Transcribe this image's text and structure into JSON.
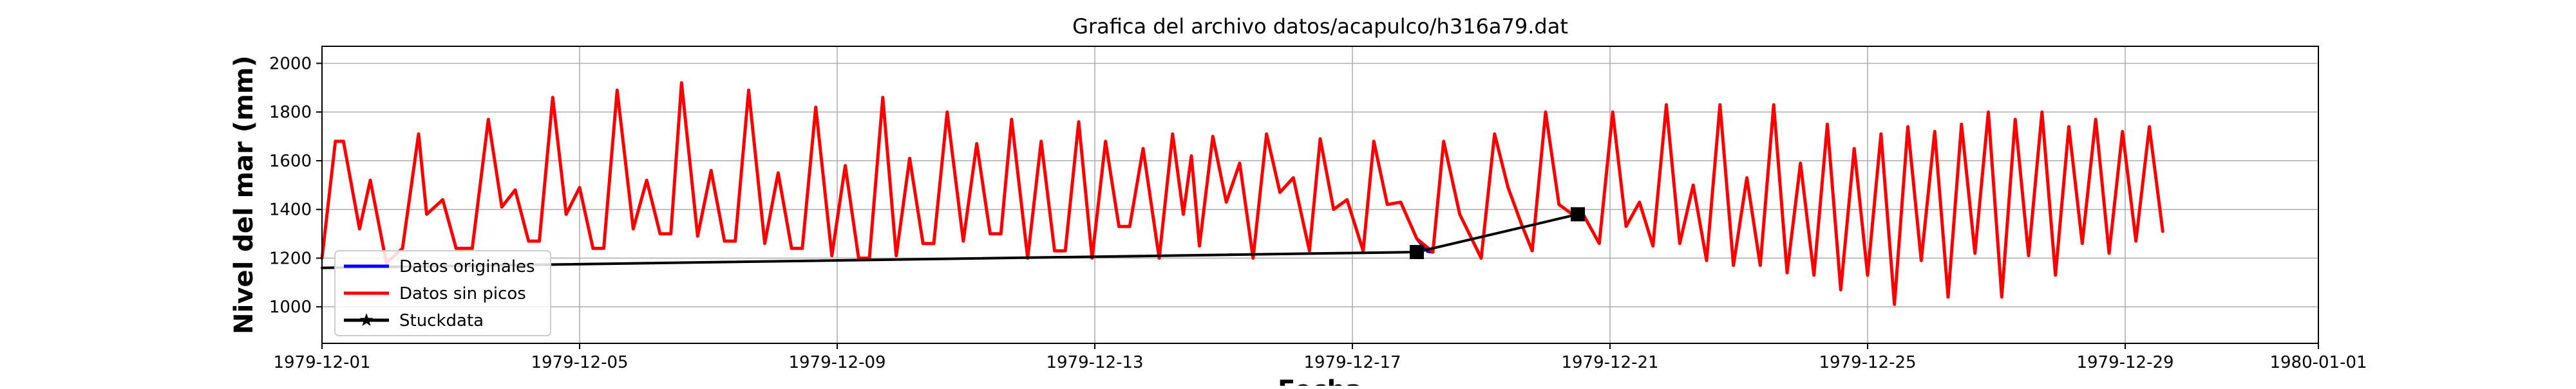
{
  "chart_data": {
    "type": "line",
    "title": "Grafica del archivo datos/acapulco/h316a79.dat",
    "xlabel": "Fecha",
    "ylabel": "Nivel del mar (mm)",
    "x_type": "date",
    "xlim": [
      "1979-12-01",
      "1980-01-01"
    ],
    "ylim": [
      850,
      2070
    ],
    "x_ticks": [
      "1979-12-01",
      "1979-12-05",
      "1979-12-09",
      "1979-12-13",
      "1979-12-17",
      "1979-12-21",
      "1979-12-25",
      "1979-12-29",
      "1980-01-01"
    ],
    "y_ticks": [
      1000,
      1200,
      1400,
      1600,
      1800,
      2000
    ],
    "grid": true,
    "legend_position": "lower-left",
    "series": [
      {
        "name": "Datos originales",
        "color": "#0000ff",
        "marker": "none",
        "points": [
          [
            "1979-12-18 00:00",
            1280
          ],
          [
            "1979-12-18 04:00",
            1228
          ],
          [
            "1979-12-18 06:00",
            1225
          ]
        ]
      },
      {
        "name": "Datos sin picos",
        "color": "#ff0000",
        "marker": "none",
        "points": [
          [
            "1979-12-01 00:00",
            1200
          ],
          [
            "1979-12-01 05:00",
            1680
          ],
          [
            "1979-12-01 08:00",
            1680
          ],
          [
            "1979-12-01 14:00",
            1320
          ],
          [
            "1979-12-01 18:00",
            1520
          ],
          [
            "1979-12-02 00:00",
            1180
          ],
          [
            "1979-12-02 06:00",
            1240
          ],
          [
            "1979-12-02 12:00",
            1710
          ],
          [
            "1979-12-02 15:00",
            1380
          ],
          [
            "1979-12-02 21:00",
            1440
          ],
          [
            "1979-12-03 02:00",
            1240
          ],
          [
            "1979-12-03 08:00",
            1240
          ],
          [
            "1979-12-03 14:00",
            1770
          ],
          [
            "1979-12-03 19:00",
            1410
          ],
          [
            "1979-12-04 00:00",
            1480
          ],
          [
            "1979-12-04 05:00",
            1270
          ],
          [
            "1979-12-04 09:00",
            1270
          ],
          [
            "1979-12-04 14:00",
            1860
          ],
          [
            "1979-12-04 19:00",
            1380
          ],
          [
            "1979-12-05 00:00",
            1490
          ],
          [
            "1979-12-05 05:00",
            1240
          ],
          [
            "1979-12-05 09:00",
            1240
          ],
          [
            "1979-12-05 14:00",
            1890
          ],
          [
            "1979-12-05 20:00",
            1320
          ],
          [
            "1979-12-06 01:00",
            1520
          ],
          [
            "1979-12-06 06:00",
            1300
          ],
          [
            "1979-12-06 10:00",
            1300
          ],
          [
            "1979-12-06 14:00",
            1920
          ],
          [
            "1979-12-06 20:00",
            1290
          ],
          [
            "1979-12-07 01:00",
            1560
          ],
          [
            "1979-12-07 06:00",
            1270
          ],
          [
            "1979-12-07 10:00",
            1270
          ],
          [
            "1979-12-07 15:00",
            1890
          ],
          [
            "1979-12-07 21:00",
            1260
          ],
          [
            "1979-12-08 02:00",
            1550
          ],
          [
            "1979-12-08 07:00",
            1240
          ],
          [
            "1979-12-08 11:00",
            1240
          ],
          [
            "1979-12-08 16:00",
            1820
          ],
          [
            "1979-12-08 22:00",
            1210
          ],
          [
            "1979-12-09 03:00",
            1580
          ],
          [
            "1979-12-09 08:00",
            1200
          ],
          [
            "1979-12-09 12:00",
            1200
          ],
          [
            "1979-12-09 17:00",
            1860
          ],
          [
            "1979-12-09 22:00",
            1210
          ],
          [
            "1979-12-10 03:00",
            1610
          ],
          [
            "1979-12-10 08:00",
            1260
          ],
          [
            "1979-12-10 12:00",
            1260
          ],
          [
            "1979-12-10 17:00",
            1800
          ],
          [
            "1979-12-10 23:00",
            1270
          ],
          [
            "1979-12-11 04:00",
            1670
          ],
          [
            "1979-12-11 09:00",
            1300
          ],
          [
            "1979-12-11 13:00",
            1300
          ],
          [
            "1979-12-11 17:00",
            1770
          ],
          [
            "1979-12-11 23:00",
            1200
          ],
          [
            "1979-12-12 04:00",
            1680
          ],
          [
            "1979-12-12 09:00",
            1230
          ],
          [
            "1979-12-12 13:00",
            1230
          ],
          [
            "1979-12-12 18:00",
            1760
          ],
          [
            "1979-12-12 23:00",
            1200
          ],
          [
            "1979-12-13 04:00",
            1680
          ],
          [
            "1979-12-13 09:00",
            1330
          ],
          [
            "1979-12-13 13:00",
            1330
          ],
          [
            "1979-12-13 18:00",
            1650
          ],
          [
            "1979-12-14 00:00",
            1200
          ],
          [
            "1979-12-14 05:00",
            1710
          ],
          [
            "1979-12-14 09:00",
            1380
          ],
          [
            "1979-12-14 12:00",
            1620
          ],
          [
            "1979-12-14 15:00",
            1250
          ],
          [
            "1979-12-14 20:00",
            1700
          ],
          [
            "1979-12-15 01:00",
            1430
          ],
          [
            "1979-12-15 06:00",
            1590
          ],
          [
            "1979-12-15 11:00",
            1200
          ],
          [
            "1979-12-15 16:00",
            1710
          ],
          [
            "1979-12-15 21:00",
            1470
          ],
          [
            "1979-12-16 02:00",
            1530
          ],
          [
            "1979-12-16 08:00",
            1230
          ],
          [
            "1979-12-16 12:00",
            1690
          ],
          [
            "1979-12-16 17:00",
            1400
          ],
          [
            "1979-12-16 22:00",
            1440
          ],
          [
            "1979-12-17 04:00",
            1230
          ],
          [
            "1979-12-17 08:00",
            1680
          ],
          [
            "1979-12-17 13:00",
            1420
          ],
          [
            "1979-12-17 18:00",
            1430
          ],
          [
            "1979-12-18 00:00",
            1280
          ],
          [
            "1979-12-18 06:00",
            1225
          ],
          [
            "1979-12-18 10:00",
            1680
          ],
          [
            "1979-12-18 16:00",
            1380
          ],
          [
            "1979-12-19 00:00",
            1200
          ],
          [
            "1979-12-19 05:00",
            1710
          ],
          [
            "1979-12-19 10:00",
            1490
          ],
          [
            "1979-12-19 15:00",
            1340
          ],
          [
            "1979-12-19 19:00",
            1230
          ],
          [
            "1979-12-20 00:00",
            1800
          ],
          [
            "1979-12-20 05:00",
            1420
          ],
          [
            "1979-12-20 10:00",
            1380
          ],
          [
            "1979-12-20 14:00",
            1380
          ],
          [
            "1979-12-20 20:00",
            1260
          ],
          [
            "1979-12-21 01:00",
            1800
          ],
          [
            "1979-12-21 06:00",
            1330
          ],
          [
            "1979-12-21 11:00",
            1430
          ],
          [
            "1979-12-21 16:00",
            1250
          ],
          [
            "1979-12-21 21:00",
            1830
          ],
          [
            "1979-12-22 02:00",
            1260
          ],
          [
            "1979-12-22 07:00",
            1500
          ],
          [
            "1979-12-22 12:00",
            1190
          ],
          [
            "1979-12-22 17:00",
            1830
          ],
          [
            "1979-12-22 22:00",
            1170
          ],
          [
            "1979-12-23 03:00",
            1530
          ],
          [
            "1979-12-23 08:00",
            1170
          ],
          [
            "1979-12-23 13:00",
            1830
          ],
          [
            "1979-12-23 18:00",
            1140
          ],
          [
            "1979-12-23 23:00",
            1590
          ],
          [
            "1979-12-24 04:00",
            1130
          ],
          [
            "1979-12-24 09:00",
            1750
          ],
          [
            "1979-12-24 14:00",
            1070
          ],
          [
            "1979-12-24 19:00",
            1650
          ],
          [
            "1979-12-25 00:00",
            1130
          ],
          [
            "1979-12-25 05:00",
            1710
          ],
          [
            "1979-12-25 10:00",
            1010
          ],
          [
            "1979-12-25 15:00",
            1740
          ],
          [
            "1979-12-25 20:00",
            1190
          ],
          [
            "1979-12-26 01:00",
            1720
          ],
          [
            "1979-12-26 06:00",
            1040
          ],
          [
            "1979-12-26 11:00",
            1750
          ],
          [
            "1979-12-26 16:00",
            1220
          ],
          [
            "1979-12-26 21:00",
            1800
          ],
          [
            "1979-12-27 02:00",
            1040
          ],
          [
            "1979-12-27 07:00",
            1770
          ],
          [
            "1979-12-27 12:00",
            1210
          ],
          [
            "1979-12-27 17:00",
            1800
          ],
          [
            "1979-12-27 22:00",
            1130
          ],
          [
            "1979-12-28 03:00",
            1740
          ],
          [
            "1979-12-28 08:00",
            1260
          ],
          [
            "1979-12-28 13:00",
            1770
          ],
          [
            "1979-12-28 18:00",
            1220
          ],
          [
            "1979-12-28 23:00",
            1720
          ],
          [
            "1979-12-29 04:00",
            1270
          ],
          [
            "1979-12-29 09:00",
            1740
          ],
          [
            "1979-12-29 14:00",
            1310
          ]
        ]
      },
      {
        "name": "Stuckdata",
        "color": "#000000",
        "marker": "star",
        "points": [
          [
            "1979-12-01 00:00",
            1160
          ],
          [
            "1979-12-18 00:00",
            1225
          ],
          [
            "1979-12-20 12:00",
            1380
          ]
        ],
        "marker_points": [
          [
            "1979-12-18 00:00",
            1225
          ],
          [
            "1979-12-20 12:00",
            1380
          ]
        ]
      }
    ]
  }
}
